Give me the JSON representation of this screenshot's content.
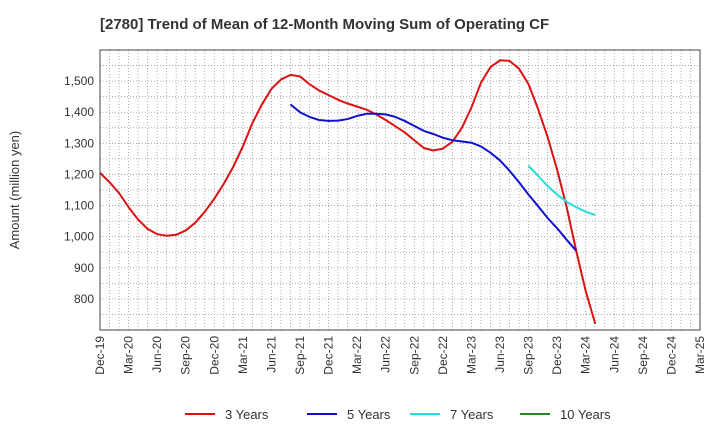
{
  "chart_data": {
    "type": "line",
    "title": "[2780]  Trend of Mean of 12-Month Moving Sum of Operating CF",
    "xlabel": "",
    "ylabel": "Amount (million yen)",
    "ylim": [
      700,
      1600
    ],
    "yticks": [
      800,
      900,
      1000,
      1100,
      1200,
      1300,
      1400,
      1500
    ],
    "ytick_labels": [
      "800",
      "900",
      "1,000",
      "1,100",
      "1,200",
      "1,300",
      "1,400",
      "1,500"
    ],
    "x_range": [
      0,
      63
    ],
    "xtick_positions": [
      0,
      3,
      6,
      9,
      12,
      15,
      18,
      21,
      24,
      27,
      30,
      33,
      36,
      39,
      42,
      45,
      48,
      51,
      54,
      57,
      60,
      63
    ],
    "xtick_labels": [
      "Dec-19",
      "Mar-20",
      "Jun-20",
      "Sep-20",
      "Dec-20",
      "Mar-21",
      "Jun-21",
      "Sep-21",
      "Dec-21",
      "Mar-22",
      "Jun-22",
      "Sep-22",
      "Dec-22",
      "Mar-23",
      "Jun-23",
      "Sep-23",
      "Dec-23",
      "Mar-24",
      "Jun-24",
      "Sep-24",
      "Dec-24",
      "Mar-25"
    ],
    "grid": true,
    "legend_position": "bottom",
    "series": [
      {
        "name": "3 Years",
        "color": "#dd1111",
        "start": 0,
        "values": [
          1205,
          1175,
          1140,
          1095,
          1055,
          1025,
          1008,
          1003,
          1006,
          1020,
          1045,
          1080,
          1122,
          1170,
          1225,
          1290,
          1365,
          1425,
          1475,
          1505,
          1520,
          1515,
          1490,
          1470,
          1455,
          1440,
          1428,
          1418,
          1408,
          1393,
          1375,
          1355,
          1335,
          1310,
          1285,
          1277,
          1283,
          1305,
          1350,
          1415,
          1495,
          1545,
          1567,
          1565,
          1540,
          1490,
          1410,
          1320,
          1215,
          1095,
          955,
          825,
          720
        ]
      },
      {
        "name": "5 Years",
        "color": "#1111cc",
        "start": 20,
        "values": [
          1425,
          1400,
          1385,
          1375,
          1372,
          1373,
          1378,
          1388,
          1395,
          1395,
          1393,
          1385,
          1372,
          1356,
          1340,
          1330,
          1318,
          1310,
          1306,
          1302,
          1290,
          1270,
          1245,
          1212,
          1175,
          1135,
          1098,
          1060,
          1027,
          990,
          955
        ]
      },
      {
        "name": "7 Years",
        "color": "#22dddd",
        "start": 45,
        "values": [
          1228,
          1195,
          1163,
          1135,
          1112,
          1095,
          1080,
          1070
        ]
      },
      {
        "name": "10 Years",
        "color": "#228822",
        "start": 45,
        "values": []
      }
    ]
  }
}
